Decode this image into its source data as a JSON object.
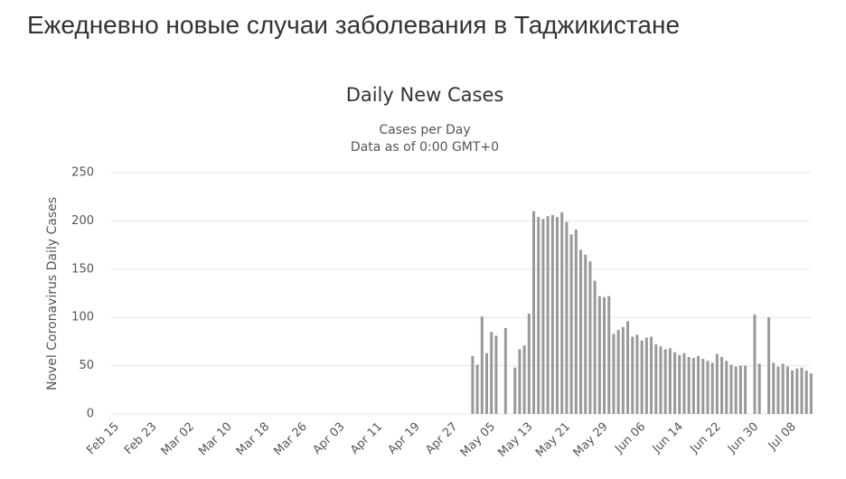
{
  "header": {
    "title": "Ежедневно новые случаи заболевания в Таджикистане"
  },
  "chart_data": {
    "type": "bar",
    "title": "Daily New Cases",
    "subtitle": [
      "Cases per Day",
      "Data as of 0:00 GMT+0"
    ],
    "y_label": "Novel Coronavirus Daily Cases",
    "color": "#999999",
    "grid": true,
    "ylim": [
      0,
      250
    ],
    "yticks": [
      0,
      50,
      100,
      150,
      200,
      250
    ],
    "categories": [
      "Feb 15",
      null,
      null,
      null,
      null,
      null,
      null,
      null,
      "Feb 23",
      null,
      null,
      null,
      null,
      null,
      null,
      null,
      "Mar 02",
      null,
      null,
      null,
      null,
      null,
      null,
      null,
      "Mar 10",
      null,
      null,
      null,
      null,
      null,
      null,
      null,
      "Mar 18",
      null,
      null,
      null,
      null,
      null,
      null,
      null,
      "Mar 26",
      null,
      null,
      null,
      null,
      null,
      null,
      null,
      "Apr 03",
      null,
      null,
      null,
      null,
      null,
      null,
      null,
      "Apr 11",
      null,
      null,
      null,
      null,
      null,
      null,
      null,
      "Apr 19",
      null,
      null,
      null,
      null,
      null,
      null,
      null,
      "Apr 27",
      null,
      null,
      null,
      null,
      null,
      null,
      null,
      "May 05",
      null,
      null,
      null,
      null,
      null,
      null,
      null,
      "May 13",
      null,
      null,
      null,
      null,
      null,
      null,
      null,
      "May 21",
      null,
      null,
      null,
      null,
      null,
      null,
      null,
      "May 29",
      null,
      null,
      null,
      null,
      null,
      null,
      null,
      "Jun 06",
      null,
      null,
      null,
      null,
      null,
      null,
      null,
      "Jun 14",
      null,
      null,
      null,
      null,
      null,
      null,
      null,
      "Jun 22",
      null,
      null,
      null,
      null,
      null,
      null,
      null,
      "Jun 30",
      null,
      null,
      null,
      null,
      null,
      null,
      null,
      "Jul 08",
      null,
      null,
      null,
      null
    ],
    "values": [
      null,
      null,
      null,
      null,
      null,
      null,
      null,
      null,
      null,
      null,
      null,
      null,
      null,
      null,
      null,
      null,
      null,
      null,
      null,
      null,
      null,
      null,
      null,
      null,
      null,
      null,
      null,
      null,
      null,
      null,
      null,
      null,
      null,
      null,
      null,
      null,
      null,
      null,
      null,
      null,
      null,
      null,
      null,
      null,
      null,
      null,
      null,
      null,
      null,
      null,
      null,
      null,
      null,
      null,
      null,
      null,
      null,
      null,
      null,
      null,
      null,
      null,
      null,
      null,
      null,
      null,
      null,
      null,
      null,
      null,
      null,
      null,
      null,
      null,
      null,
      null,
      60,
      51,
      101,
      63,
      85,
      81,
      null,
      89,
      null,
      48,
      67,
      71,
      104,
      210,
      204,
      202,
      205,
      206,
      204,
      209,
      199,
      186,
      191,
      170,
      165,
      158,
      138,
      122,
      121,
      122,
      83,
      87,
      90,
      96,
      80,
      82,
      76,
      79,
      80,
      72,
      70,
      67,
      68,
      64,
      61,
      63,
      59,
      58,
      60,
      57,
      55,
      53,
      62,
      59,
      55,
      51,
      49,
      50,
      50,
      null,
      103,
      52,
      null,
      100,
      53,
      49,
      52,
      49,
      45,
      47,
      48,
      45,
      42
    ]
  }
}
